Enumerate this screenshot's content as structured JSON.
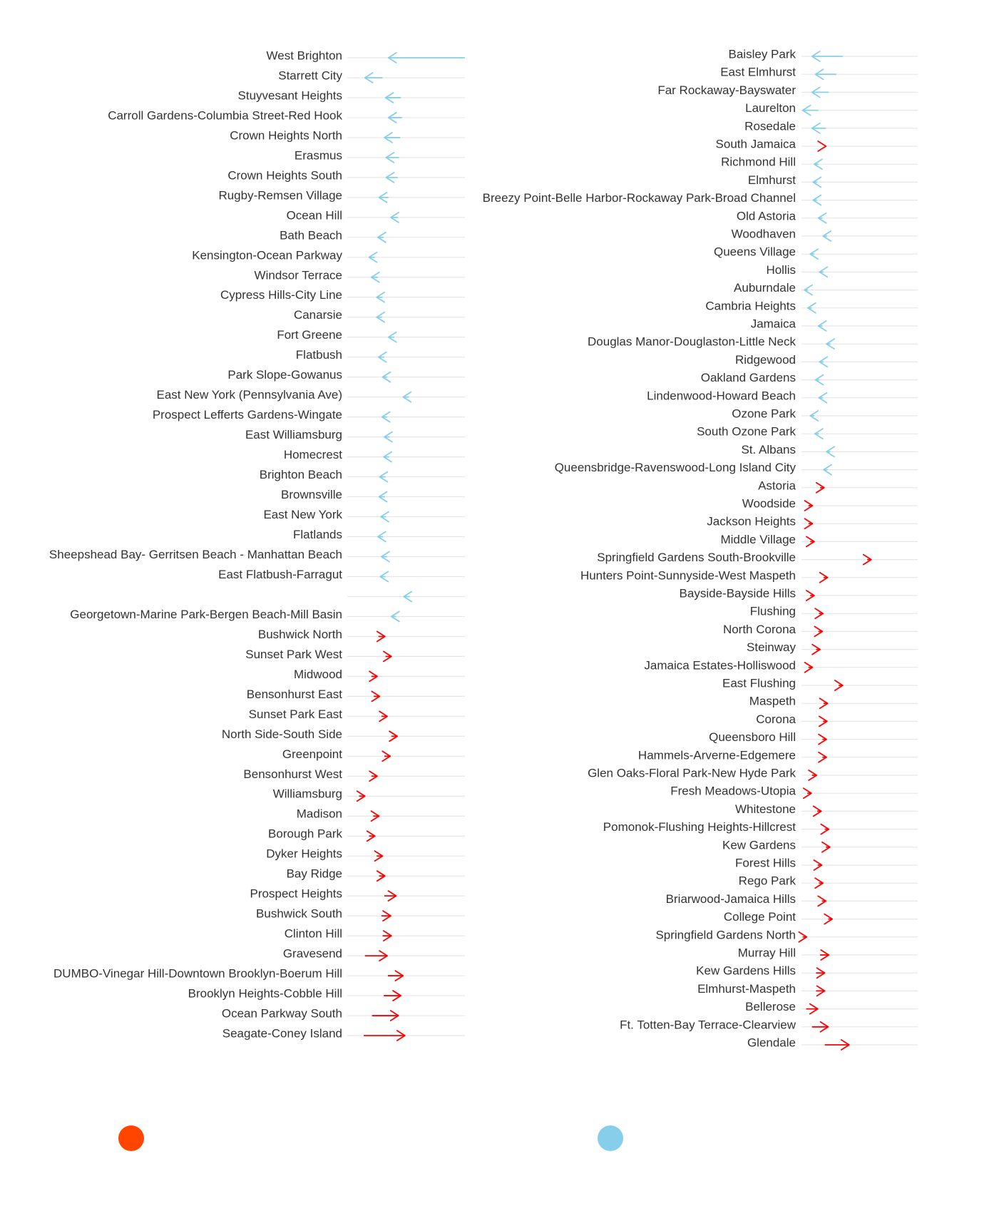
{
  "chart_data": {
    "type": "arrow",
    "x_domain": [
      -100,
      100
    ],
    "colors": {
      "decrease": "#87ceeb",
      "increase": "#ff0000",
      "legend_increase": "#ff4500",
      "legend_decrease": "#87ceeb",
      "track": "#e6e6e6"
    },
    "legend": [
      {
        "color": "#ff4500",
        "label": ""
      },
      {
        "color": "#87ceeb",
        "label": ""
      }
    ],
    "panels": [
      {
        "items": [
          {
            "name": "West Brighton",
            "start": 100,
            "end": -30
          },
          {
            "name": "Starrett City",
            "start": -40,
            "end": -70
          },
          {
            "name": "Stuyvesant Heights",
            "start": -9,
            "end": -35
          },
          {
            "name": "Carroll Gardens-Columbia Street-Red Hook",
            "start": -7,
            "end": -30
          },
          {
            "name": "Crown Heights North",
            "start": -10,
            "end": -37
          },
          {
            "name": "Erasmus",
            "start": -12,
            "end": -34
          },
          {
            "name": "Crown Heights South",
            "start": -14,
            "end": -34
          },
          {
            "name": "Rugby-Remsen Village",
            "start": -30,
            "end": -46
          },
          {
            "name": "Ocean Hill",
            "start": -14,
            "end": -26
          },
          {
            "name": "Bath Beach",
            "start": -38,
            "end": -48
          },
          {
            "name": "Kensington-Ocean Parkway",
            "start": -53,
            "end": -63
          },
          {
            "name": "Windsor Terrace",
            "start": -48,
            "end": -59
          },
          {
            "name": "Cypress Hills-City Line",
            "start": -40,
            "end": -50
          },
          {
            "name": "Canarsie",
            "start": -41,
            "end": -50
          },
          {
            "name": "Fort Greene",
            "start": -20,
            "end": -30
          },
          {
            "name": "Flatbush",
            "start": -37,
            "end": -47
          },
          {
            "name": "Park Slope-Gowanus",
            "start": -32,
            "end": -40
          },
          {
            "name": "East New York (Pennsylvania Ave)",
            "start": 5,
            "end": -5
          },
          {
            "name": "Prospect Lefferts Gardens-Wingate",
            "start": -32,
            "end": -41
          },
          {
            "name": "East Williamsburg",
            "start": -28,
            "end": -37
          },
          {
            "name": "Homecrest",
            "start": -29,
            "end": -38
          },
          {
            "name": "Brighton Beach",
            "start": -35,
            "end": -45
          },
          {
            "name": "Brownsville",
            "start": -36,
            "end": -46
          },
          {
            "name": "East New York",
            "start": -34,
            "end": -43
          },
          {
            "name": "Flatlands",
            "start": -39,
            "end": -48
          },
          {
            "name": "Sheepshead Bay- Gerritsen Beach - Manhattan Beach",
            "start": -32,
            "end": -42
          },
          {
            "name": "East Flatbush-Farragut",
            "start": -35,
            "end": -44
          },
          {
            "name": "",
            "start": 6,
            "end": -4
          },
          {
            "name": "Georgetown-Marine Park-Bergen Beach-Mill Basin",
            "start": -17,
            "end": -25
          },
          {
            "name": "Bushwick North",
            "start": -47,
            "end": -36
          },
          {
            "name": "Sunset Park West",
            "start": -35,
            "end": -25
          },
          {
            "name": "Midwood",
            "start": -59,
            "end": -49
          },
          {
            "name": "Bensonhurst East",
            "start": -55,
            "end": -45
          },
          {
            "name": "Sunset Park East",
            "start": -42,
            "end": -32
          },
          {
            "name": "North Side-South Side",
            "start": -25,
            "end": -15
          },
          {
            "name": "Greenpoint",
            "start": -37,
            "end": -27
          },
          {
            "name": "Bensonhurst West",
            "start": -59,
            "end": -49
          },
          {
            "name": "Williamsburg",
            "start": -80,
            "end": -70
          },
          {
            "name": "Madison",
            "start": -56,
            "end": -46
          },
          {
            "name": "Borough Park",
            "start": -63,
            "end": -53
          },
          {
            "name": "Dyker Heights",
            "start": -50,
            "end": -40
          },
          {
            "name": "Bay Ridge",
            "start": -46,
            "end": -36
          },
          {
            "name": "Prospect Heights",
            "start": -37,
            "end": -17
          },
          {
            "name": "Bushwick South",
            "start": -42,
            "end": -26
          },
          {
            "name": "Clinton Hill",
            "start": -40,
            "end": -25
          },
          {
            "name": "Gravesend",
            "start": -70,
            "end": -32
          },
          {
            "name": "DUMBO-Vinegar Hill-Downtown Brooklyn-Boerum Hill",
            "start": -31,
            "end": -5
          },
          {
            "name": "Brooklyn Heights-Cobble Hill",
            "start": -38,
            "end": -9
          },
          {
            "name": "Ocean Parkway South",
            "start": -58,
            "end": -13
          },
          {
            "name": "Seagate-Coney Island",
            "start": -72,
            "end": -2
          }
        ]
      },
      {
        "items": [
          {
            "name": "Baisley Park",
            "start": -29,
            "end": -82
          },
          {
            "name": "East Elmhurst",
            "start": -40,
            "end": -76
          },
          {
            "name": "Far Rockaway-Bayswater",
            "start": -53,
            "end": -82
          },
          {
            "name": "Laurelton",
            "start": -71,
            "end": -98
          },
          {
            "name": "Rosedale",
            "start": -58,
            "end": -82
          },
          {
            "name": "South Jamaica",
            "start": -58,
            "end": -58
          },
          {
            "name": "Richmond Hill",
            "start": -71,
            "end": -78
          },
          {
            "name": "Elmhurst",
            "start": -73,
            "end": -80
          },
          {
            "name": "Breezy Point-Belle Harbor-Rockaway Park-Broad Channel",
            "start": -73,
            "end": -80
          },
          {
            "name": "Old Astoria",
            "start": -64,
            "end": -71
          },
          {
            "name": "Woodhaven",
            "start": -56,
            "end": -63
          },
          {
            "name": "Queens Village",
            "start": -78,
            "end": -85
          },
          {
            "name": "Hollis",
            "start": -62,
            "end": -69
          },
          {
            "name": "Auburndale",
            "start": -89,
            "end": -95
          },
          {
            "name": "Cambria Heights",
            "start": -82,
            "end": -89
          },
          {
            "name": "Jamaica",
            "start": -64,
            "end": -71
          },
          {
            "name": "Douglas Manor-Douglaston-Little Neck",
            "start": -50,
            "end": -57
          },
          {
            "name": "Ridgewood",
            "start": -62,
            "end": -69
          },
          {
            "name": "Oakland Gardens",
            "start": -69,
            "end": -76
          },
          {
            "name": "Lindenwood-Howard Beach",
            "start": -63,
            "end": -70
          },
          {
            "name": "Ozone Park",
            "start": -78,
            "end": -85
          },
          {
            "name": "South Ozone Park",
            "start": -70,
            "end": -77
          },
          {
            "name": "St. Albans",
            "start": -50,
            "end": -57
          },
          {
            "name": "Queensbridge-Ravenswood-Long Island City",
            "start": -55,
            "end": -62
          },
          {
            "name": "Astoria",
            "start": -68,
            "end": -61
          },
          {
            "name": "Woodside",
            "start": -88,
            "end": -81
          },
          {
            "name": "Jackson Heights",
            "start": -88,
            "end": -81
          },
          {
            "name": "Middle Village",
            "start": -85,
            "end": -78
          },
          {
            "name": "Springfield Gardens South-Brookville",
            "start": 13,
            "end": 20
          },
          {
            "name": "Hunters Point-Sunnyside-West Maspeth",
            "start": -62,
            "end": -55
          },
          {
            "name": "Bayside-Bayside Hills",
            "start": -85,
            "end": -78
          },
          {
            "name": "Flushing",
            "start": -70,
            "end": -63
          },
          {
            "name": "North Corona",
            "start": -71,
            "end": -64
          },
          {
            "name": "Steinway",
            "start": -75,
            "end": -68
          },
          {
            "name": "Jamaica Estates-Holliswood",
            "start": -88,
            "end": -81
          },
          {
            "name": "East Flushing",
            "start": -36,
            "end": -29
          },
          {
            "name": "Maspeth",
            "start": -62,
            "end": -55
          },
          {
            "name": "Corona",
            "start": -63,
            "end": -56
          },
          {
            "name": "Queensboro Hill",
            "start": -64,
            "end": -57
          },
          {
            "name": "Hammels-Arverne-Edgemere",
            "start": -64,
            "end": -57
          },
          {
            "name": "Glen Oaks-Floral Park-New Hyde Park",
            "start": -82,
            "end": -74
          },
          {
            "name": "Fresh Meadows-Utopia",
            "start": -90,
            "end": -83
          },
          {
            "name": "Whitestone",
            "start": -73,
            "end": -66
          },
          {
            "name": "Pomonok-Flushing Heights-Hillcrest",
            "start": -60,
            "end": -53
          },
          {
            "name": "Kew Gardens",
            "start": -58,
            "end": -51
          },
          {
            "name": "Forest Hills",
            "start": -72,
            "end": -65
          },
          {
            "name": "Rego Park",
            "start": -70,
            "end": -63
          },
          {
            "name": "Briarwood-Jamaica Hills",
            "start": -65,
            "end": -58
          },
          {
            "name": "College Point",
            "start": -54,
            "end": -47
          },
          {
            "name": "Springfield Gardens North",
            "start": -98,
            "end": -91
          },
          {
            "name": "Murray Hill",
            "start": -68,
            "end": -53
          },
          {
            "name": "Kew Gardens Hills",
            "start": -75,
            "end": -60
          },
          {
            "name": "Elmhurst-Maspeth",
            "start": -75,
            "end": -60
          },
          {
            "name": "Bellerose",
            "start": -92,
            "end": -72
          },
          {
            "name": "Ft. Totten-Bay Terrace-Clearview",
            "start": -82,
            "end": -54
          },
          {
            "name": "Glendale",
            "start": -60,
            "end": -18
          }
        ]
      }
    ]
  }
}
